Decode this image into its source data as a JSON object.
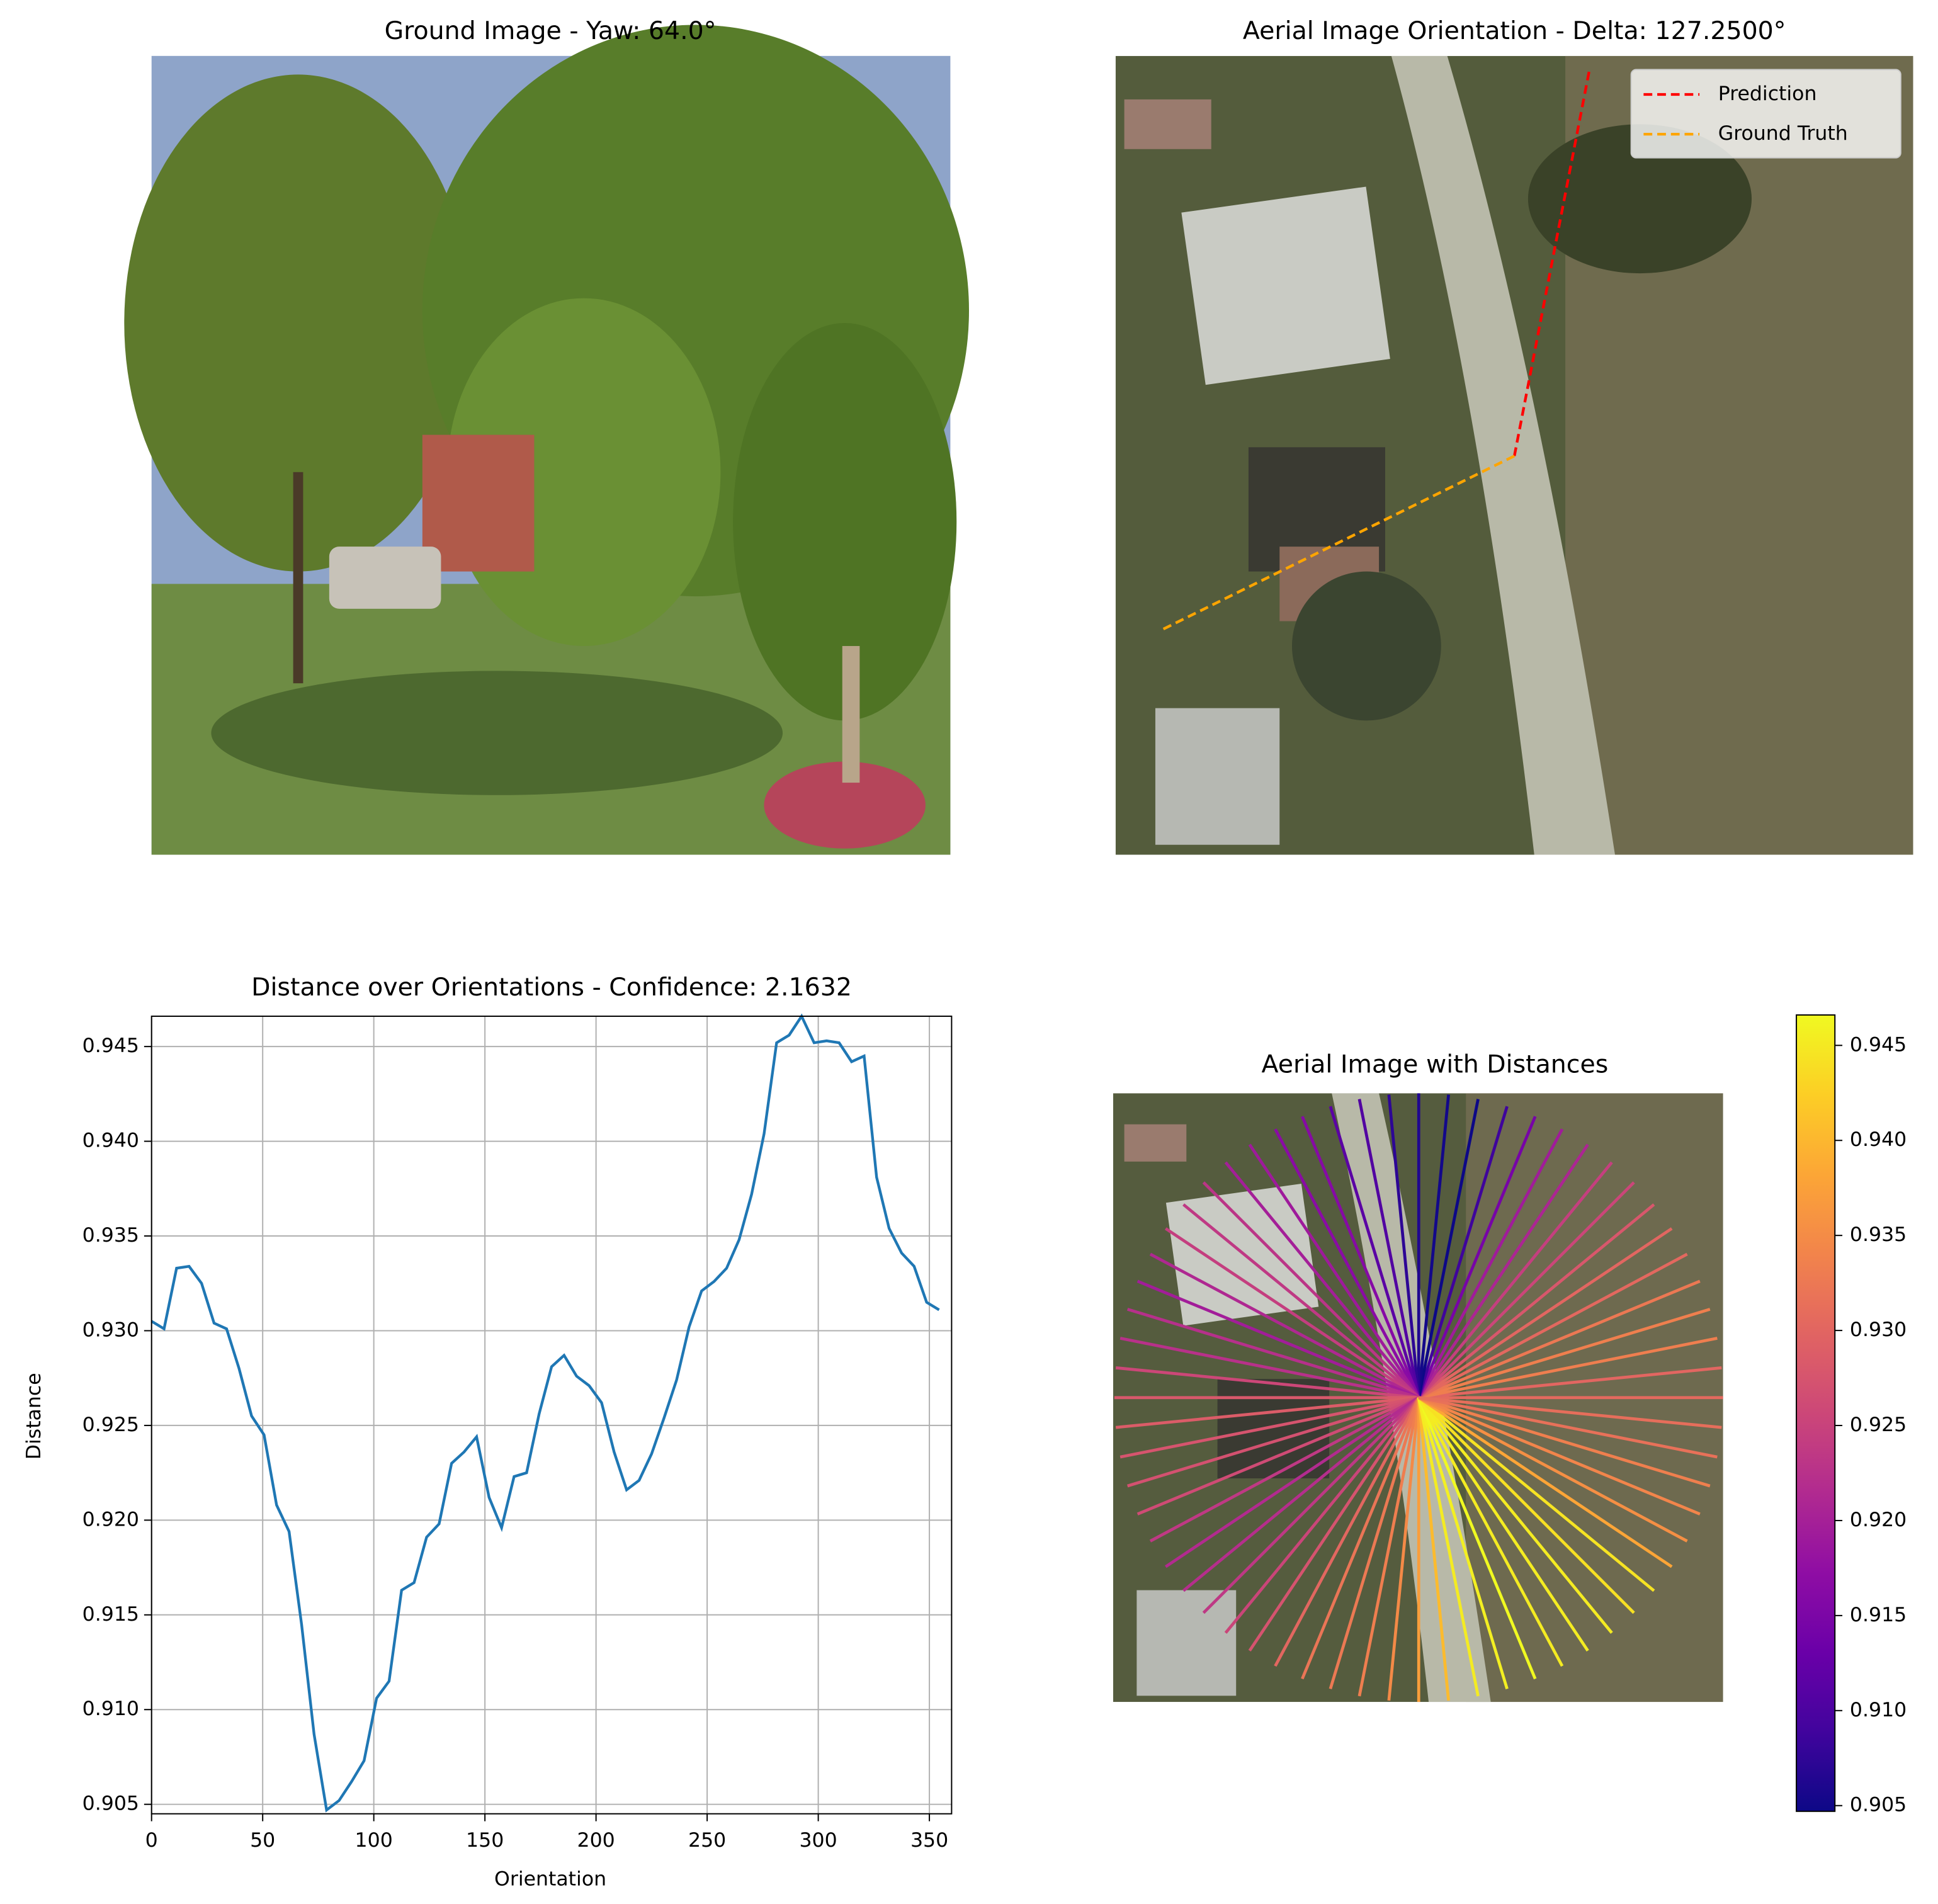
{
  "chart_data": [
    {
      "type": "image",
      "title": "Ground Image - Yaw: 64.0°"
    },
    {
      "type": "image",
      "title": "Aerial Image Orientation - Delta: 127.2500°",
      "legend": "upper right",
      "series": [
        {
          "name": "Prediction",
          "color": "#ff0000",
          "angle": 11
        },
        {
          "name": "Ground Truth",
          "color": "#ffa500",
          "angle": 243.75
        }
      ]
    },
    {
      "type": "line",
      "title": "Distance over Orientations - Confidence: 2.1632",
      "xlabel": "Orientation",
      "ylabel": "Distance",
      "color": "#1f77b4",
      "grid": true,
      "x": [
        0,
        5.625,
        11.25,
        16.875,
        22.5,
        28.125,
        33.75,
        39.375,
        45,
        50.625,
        56.25,
        61.875,
        67.5,
        73.125,
        78.75,
        84.375,
        90,
        95.625,
        101.25,
        106.875,
        112.5,
        118.125,
        123.75,
        129.375,
        135,
        140.625,
        146.25,
        151.875,
        157.5,
        163.125,
        168.75,
        174.375,
        180,
        185.625,
        191.25,
        196.875,
        202.5,
        208.125,
        213.75,
        219.375,
        225,
        230.625,
        236.25,
        241.875,
        247.5,
        253.125,
        258.75,
        264.375,
        270,
        275.625,
        281.25,
        286.875,
        292.5,
        298.125,
        303.75,
        309.375,
        315,
        320.625,
        326.25,
        331.875,
        337.5,
        343.125,
        348.75,
        354.375
      ],
      "values": [
        0.9305,
        0.9301,
        0.9333,
        0.9334,
        0.9325,
        0.9304,
        0.9301,
        0.928,
        0.9255,
        0.9245,
        0.9208,
        0.9194,
        0.9145,
        0.9087,
        0.9047,
        0.9052,
        0.9062,
        0.9073,
        0.9106,
        0.9115,
        0.9163,
        0.9167,
        0.9191,
        0.9198,
        0.923,
        0.9236,
        0.9244,
        0.9212,
        0.9196,
        0.9223,
        0.9225,
        0.9256,
        0.9281,
        0.9287,
        0.9276,
        0.9271,
        0.9262,
        0.9236,
        0.9216,
        0.9221,
        0.9235,
        0.9254,
        0.9274,
        0.9302,
        0.9321,
        0.9326,
        0.9333,
        0.9348,
        0.9372,
        0.9404,
        0.9452,
        0.9456,
        0.9466,
        0.9452,
        0.9453,
        0.9452,
        0.9442,
        0.9445,
        0.9381,
        0.9354,
        0.9341,
        0.9334,
        0.9315,
        0.9311
      ],
      "xlim": [
        0,
        360
      ],
      "xticks": [
        0,
        50,
        100,
        150,
        200,
        250,
        300,
        350
      ],
      "ylim": [
        0.9045,
        0.9466
      ],
      "yticks": [
        0.905,
        {
          "value": 0.91,
          "label": "0.910"
        },
        0.915,
        {
          "value": 0.92,
          "label": "0.920"
        },
        0.925,
        {
          "value": 0.93,
          "label": "0.930"
        },
        0.935,
        {
          "value": 0.94,
          "label": "0.940"
        },
        0.945
      ]
    },
    {
      "type": "radial",
      "title": "Aerial Image with Distances",
      "colormap": "plasma",
      "colorbar": {
        "ylim": [
          0.9047,
          0.9466
        ],
        "yticks": [
          0.905,
          {
            "value": 0.91,
            "label": "0.910"
          },
          0.915,
          {
            "value": 0.92,
            "label": "0.920"
          },
          0.925,
          {
            "value": 0.93,
            "label": "0.930"
          },
          0.935,
          {
            "value": 0.94,
            "label": "0.940"
          },
          0.945
        ]
      }
    }
  ]
}
